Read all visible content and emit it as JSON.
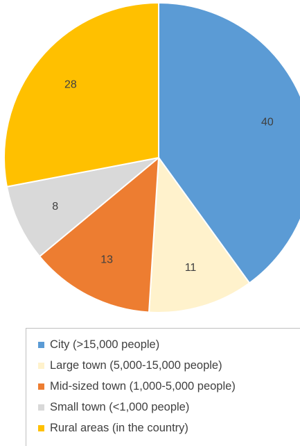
{
  "chart_data": {
    "type": "pie",
    "title": "",
    "start_angle_deg": 0,
    "direction": "clockwise",
    "legend_position": "bottom",
    "slices": [
      {
        "label": "City (>15,000 people)",
        "value": 40,
        "color": "#5b9bd5"
      },
      {
        "label": "Large town (5,000-15,000 people)",
        "value": 11,
        "color": "#fff2cc"
      },
      {
        "label": "Mid-sized town (1,000-5,000 people)",
        "value": 13,
        "color": "#ed7d31"
      },
      {
        "label": "Small town (<1,000 people)",
        "value": 8,
        "color": "#d9d9d9"
      },
      {
        "label": "Rural areas (in the country)",
        "value": 28,
        "color": "#ffc000"
      }
    ]
  }
}
